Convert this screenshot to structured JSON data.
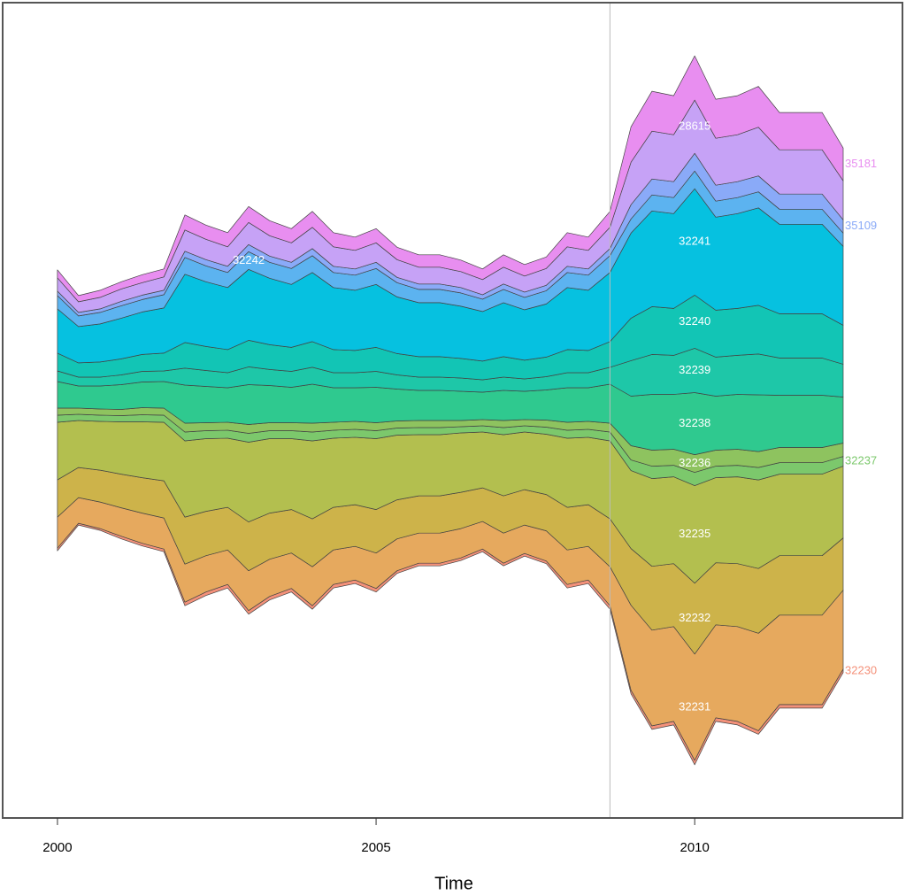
{
  "chart_data": {
    "type": "streamgraph",
    "offset": "silhouette",
    "xlabel": "Time",
    "xlim": [
      1999.14,
      2013.26
    ],
    "xticks": [
      2000,
      2005,
      2010
    ],
    "ylim": [
      -460,
      460
    ],
    "vline": 2008.67,
    "x": [
      2000.0,
      2000.33,
      2000.67,
      2001.0,
      2001.33,
      2001.67,
      2002.0,
      2002.33,
      2002.67,
      2003.0,
      2003.33,
      2003.67,
      2004.0,
      2004.33,
      2004.67,
      2005.0,
      2005.33,
      2005.67,
      2006.0,
      2006.33,
      2006.67,
      2007.0,
      2007.33,
      2007.67,
      2008.0,
      2008.33,
      2008.67,
      2009.0,
      2009.33,
      2009.67,
      2010.0,
      2010.33,
      2010.67,
      2011.0,
      2011.33,
      2011.67,
      2012.0,
      2012.33
    ],
    "series": [
      {
        "name": "32230",
        "color": "#f4917a",
        "label": "right",
        "values": [
          3,
          2,
          2,
          3,
          3,
          3,
          4,
          4,
          4,
          4,
          4,
          4,
          4,
          4,
          4,
          4,
          3,
          3,
          3,
          3,
          3,
          3,
          3,
          3,
          4,
          4,
          4,
          4,
          4,
          4,
          5,
          4,
          4,
          4,
          4,
          4,
          4,
          4
        ]
      },
      {
        "name": "32231",
        "color": "#e6a95e",
        "label": "inside",
        "values": [
          35,
          29,
          30,
          32,
          34,
          35,
          43,
          41,
          39,
          45,
          42,
          40,
          44,
          39,
          38,
          40,
          36,
          34,
          34,
          33,
          31,
          34,
          32,
          34,
          39,
          38,
          44,
          96,
          108,
          107,
          120,
          105,
          107,
          110,
          101,
          101,
          101,
          89
        ]
      },
      {
        "name": "32232",
        "color": "#cdb34a",
        "label": "inside",
        "values": [
          42,
          34,
          36,
          38,
          40,
          42,
          53,
          50,
          48,
          55,
          52,
          49,
          54,
          48,
          47,
          49,
          44,
          42,
          42,
          41,
          38,
          42,
          40,
          41,
          48,
          47,
          54,
          64,
          72,
          71,
          80,
          70,
          71,
          73,
          67,
          67,
          67,
          59
        ]
      },
      {
        "name": "32235",
        "color": "#b3bf4f",
        "label": "inside",
        "values": [
          65,
          53,
          55,
          59,
          63,
          66,
          86,
          82,
          78,
          90,
          84,
          80,
          88,
          78,
          76,
          80,
          73,
          69,
          69,
          67,
          63,
          69,
          65,
          68,
          78,
          76,
          88,
          88,
          99,
          98,
          110,
          96,
          98,
          100,
          92,
          92,
          92,
          81
        ]
      },
      {
        "name": "32237",
        "color": "#7cc86c",
        "label": "right",
        "values": [
          8,
          7,
          7,
          7,
          8,
          8,
          10,
          9,
          9,
          10,
          9,
          9,
          10,
          9,
          9,
          9,
          8,
          8,
          8,
          7,
          7,
          8,
          7,
          8,
          9,
          9,
          10,
          12,
          14,
          13,
          15,
          13,
          13,
          14,
          13,
          13,
          13,
          11
        ]
      },
      {
        "name": "32236",
        "color": "#8ec35f",
        "label": "inside",
        "values": [
          8,
          7,
          7,
          7,
          8,
          8,
          10,
          9,
          9,
          10,
          9,
          9,
          10,
          9,
          9,
          9,
          8,
          8,
          8,
          7,
          7,
          8,
          7,
          8,
          9,
          9,
          10,
          16,
          18,
          18,
          20,
          18,
          18,
          18,
          17,
          17,
          17,
          15
        ]
      },
      {
        "name": "32238",
        "color": "#2fc98f",
        "label": "inside",
        "values": [
          30,
          25,
          26,
          28,
          29,
          30,
          43,
          41,
          39,
          45,
          42,
          40,
          44,
          39,
          38,
          40,
          36,
          34,
          34,
          33,
          31,
          34,
          32,
          34,
          39,
          38,
          44,
          56,
          63,
          62,
          70,
          61,
          62,
          64,
          59,
          59,
          59,
          52
        ]
      },
      {
        "name": "32239",
        "color": "#1ec7a8",
        "label": "inside",
        "values": [
          12,
          10,
          10,
          11,
          12,
          12,
          19,
          18,
          17,
          20,
          18,
          18,
          19,
          17,
          17,
          18,
          16,
          15,
          15,
          15,
          14,
          15,
          14,
          15,
          17,
          17,
          19,
          40,
          45,
          44,
          50,
          44,
          44,
          46,
          42,
          42,
          42,
          37
        ]
      },
      {
        "name": "32240",
        "color": "#12c5b5",
        "label": "inside",
        "values": [
          20,
          16,
          17,
          18,
          19,
          20,
          29,
          27,
          26,
          30,
          28,
          27,
          29,
          26,
          25,
          27,
          24,
          23,
          23,
          22,
          21,
          23,
          21,
          22,
          26,
          25,
          29,
          48,
          54,
          53,
          60,
          53,
          53,
          55,
          50,
          50,
          50,
          44
        ]
      },
      {
        "name": "32241",
        "color": "#06c1e0",
        "label": "inside",
        "values": [
          50,
          41,
          43,
          46,
          48,
          51,
          77,
          73,
          70,
          80,
          75,
          71,
          78,
          70,
          68,
          71,
          64,
          61,
          61,
          59,
          56,
          61,
          57,
          60,
          70,
          68,
          78,
          96,
          108,
          107,
          120,
          105,
          107,
          110,
          101,
          101,
          101,
          89
        ]
      },
      {
        "name": "32242",
        "color": "#5cb3f0",
        "label": "inside",
        "values": [
          15,
          12,
          13,
          14,
          14,
          15,
          19,
          18,
          17,
          20,
          18,
          18,
          19,
          17,
          17,
          18,
          16,
          15,
          15,
          15,
          14,
          15,
          14,
          15,
          17,
          17,
          19,
          16,
          18,
          18,
          20,
          18,
          18,
          18,
          17,
          17,
          17,
          15
        ]
      },
      {
        "name": "35109",
        "color": "#8aaaf8",
        "label": "right",
        "values": [
          5,
          4,
          4,
          5,
          5,
          5,
          7,
          7,
          7,
          8,
          7,
          7,
          8,
          7,
          7,
          7,
          6,
          6,
          6,
          6,
          5,
          6,
          6,
          6,
          7,
          7,
          8,
          16,
          18,
          18,
          20,
          18,
          18,
          18,
          17,
          17,
          17,
          15
        ]
      },
      {
        "name": "28615",
        "color": "#c6a2f6",
        "label": "inside",
        "values": [
          15,
          12,
          13,
          14,
          14,
          15,
          24,
          23,
          22,
          25,
          23,
          22,
          24,
          22,
          21,
          22,
          20,
          19,
          19,
          18,
          17,
          19,
          18,
          19,
          22,
          21,
          24,
          48,
          54,
          53,
          60,
          53,
          53,
          55,
          50,
          50,
          50,
          44
        ]
      },
      {
        "name": "35181",
        "color": "#e88ef0",
        "label": "right",
        "values": [
          9,
          7,
          8,
          8,
          9,
          9,
          17,
          16,
          16,
          18,
          17,
          16,
          18,
          16,
          15,
          16,
          14,
          14,
          14,
          13,
          12,
          14,
          13,
          13,
          16,
          15,
          18,
          40,
          45,
          44,
          50,
          44,
          44,
          46,
          42,
          42,
          42,
          37
        ]
      }
    ]
  }
}
